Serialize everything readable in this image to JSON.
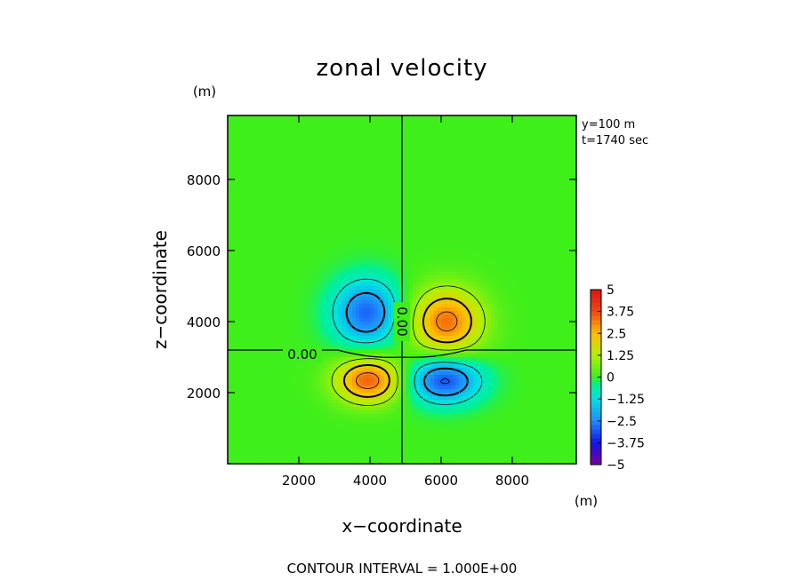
{
  "chart_data": {
    "type": "heatmap",
    "title": "zonal velocity",
    "xlabel": "x−coordinate",
    "ylabel": "z−coordinate",
    "x_unit": "(m)",
    "y_unit": "(m)",
    "xlim": [
      0,
      9800
    ],
    "ylim": [
      0,
      9800
    ],
    "x_ticks": [
      2000,
      4000,
      6000,
      8000
    ],
    "y_ticks": [
      2000,
      4000,
      6000,
      8000
    ],
    "annotations": [
      "y=100 m",
      "t=1740 sec"
    ],
    "colorbar": {
      "range": [
        -5,
        5
      ],
      "tick_values": [
        5,
        3.75,
        2.5,
        1.25,
        0,
        -1.25,
        -2.5,
        -3.75,
        -5
      ],
      "tick_labels": [
        "5",
        "3.75",
        "2.5",
        "1.25",
        "0",
        "−1.25",
        "−2.5",
        "−3.75",
        "−5"
      ]
    },
    "field": {
      "background": 0,
      "extrema": [
        {
          "x": 3900,
          "z": 4250,
          "value": -2.9,
          "sx": 650,
          "sz": 650
        },
        {
          "x": 6150,
          "z": 4000,
          "value": 3.3,
          "sx": 700,
          "sz": 650
        },
        {
          "x": 3950,
          "z": 2350,
          "value": 3.5,
          "sx": 650,
          "sz": 450
        },
        {
          "x": 6100,
          "z": 2350,
          "value": -3.2,
          "sx": 700,
          "sz": 450
        }
      ]
    },
    "contour_labels": [
      "0.00",
      "0.00"
    ],
    "contour_interval_label": "CONTOUR INTERVAL = 1.000E+00"
  }
}
